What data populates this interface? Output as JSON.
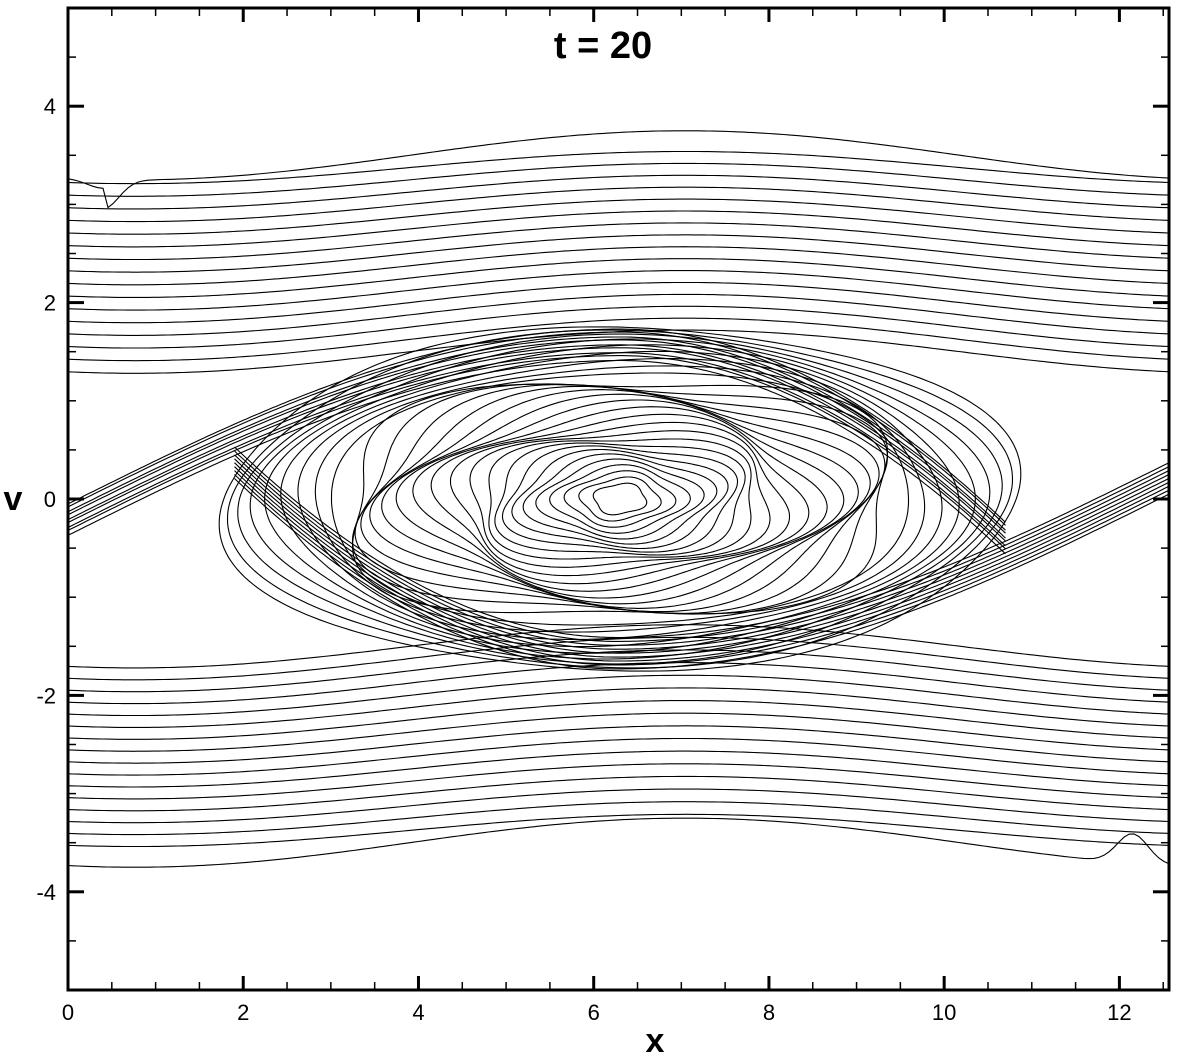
{
  "chart_data": {
    "type": "contour",
    "title": "t = 20",
    "xlabel": "x",
    "ylabel": "v",
    "xlim": [
      0,
      12.566
    ],
    "ylim": [
      -5,
      5
    ],
    "xticks": [
      0,
      2,
      4,
      6,
      8,
      10,
      12
    ],
    "xtick_labels": [
      "0",
      "2",
      "4",
      "6",
      "8",
      "10",
      "12"
    ],
    "yticks": [
      -4,
      -2,
      0,
      2,
      4
    ],
    "ytick_labels": [
      "-4",
      "-2",
      "0",
      "2",
      "4"
    ],
    "grid": false,
    "legend": "none",
    "line_color": "#000000",
    "description_of_field": {
      "upper_band_v_range": [
        1.5,
        3.5
      ],
      "lower_band_v_range": [
        -3.5,
        -1.5
      ],
      "vortex_center": [
        6.3,
        0
      ],
      "vortex_half_width_x": 4.5,
      "vortex_half_height_v": 1.8
    }
  }
}
